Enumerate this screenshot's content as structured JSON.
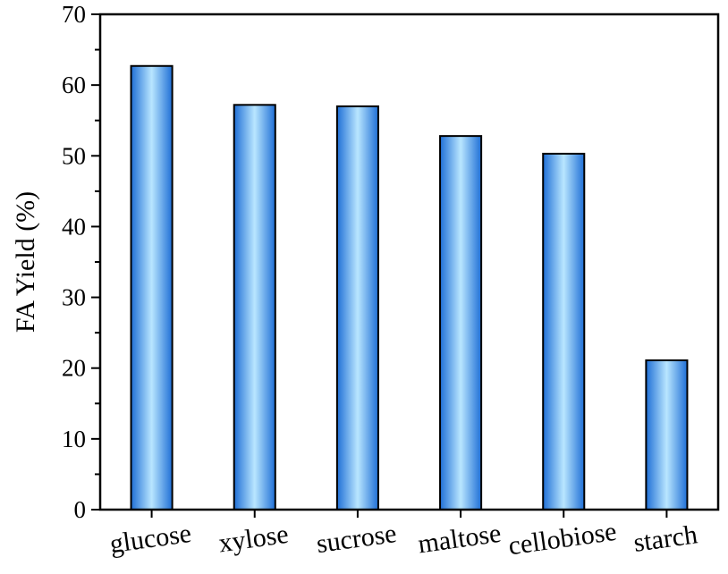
{
  "chart_data": {
    "type": "bar",
    "title": "",
    "xlabel": "",
    "ylabel": "FA Yield (%)",
    "categories": [
      "glucose",
      "xylose",
      "sucrose",
      "maltose",
      "cellobiose",
      "starch"
    ],
    "values": [
      62.7,
      57.2,
      57.0,
      52.8,
      50.3,
      21.1
    ],
    "ylim": [
      0,
      70
    ],
    "yticks": [
      0,
      10,
      20,
      30,
      40,
      50,
      60,
      70
    ],
    "grid": false,
    "legend": "none",
    "bar_color_edge": "#1f6fd6",
    "bar_color_center": "#b9e6ff",
    "bar_stroke": "#000000"
  }
}
